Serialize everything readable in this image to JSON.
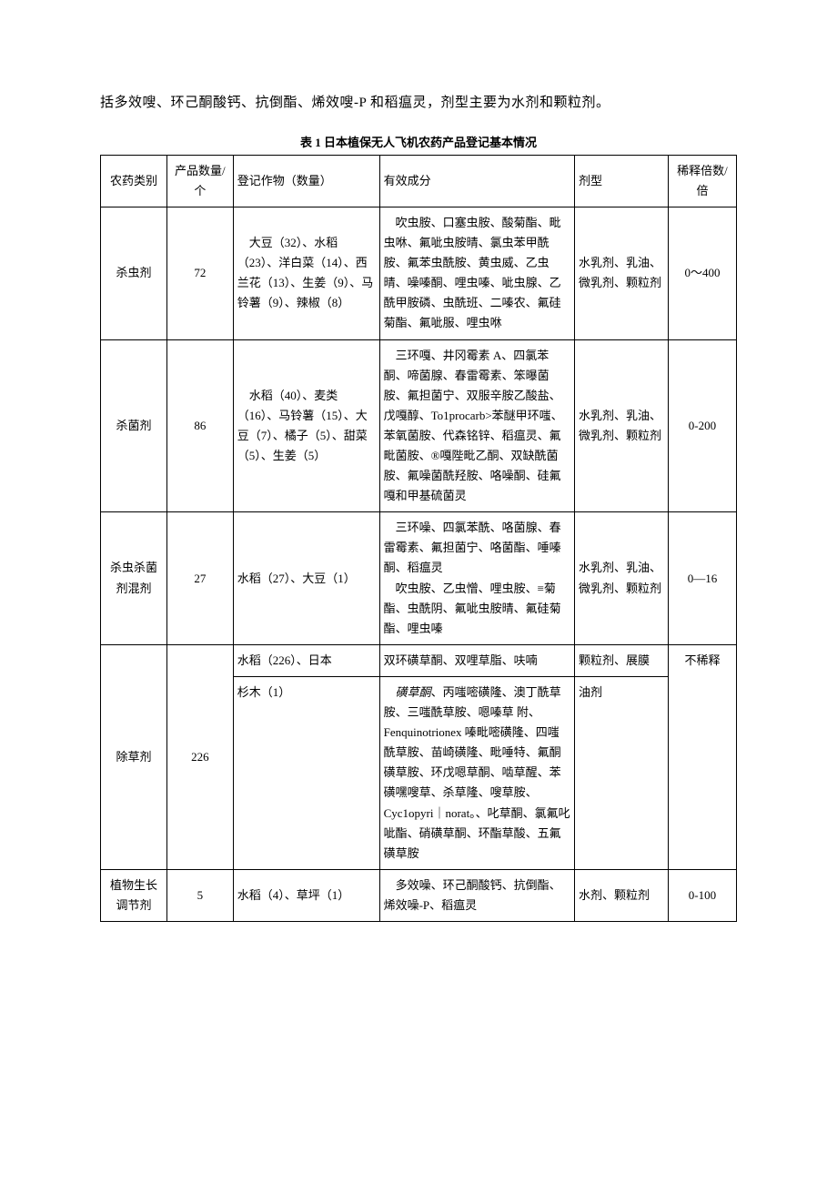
{
  "intro": "括多效嗖、环己酮酸钙、抗倒酯、烯效嗖-P 和稻瘟灵，剂型主要为水剂和颗粒剂。",
  "caption": "表 1 日本植保无人飞机农药产品登记基本情况",
  "headers": {
    "category": "农药类别",
    "count": "产品数量/个",
    "crops": "登记作物（数量）",
    "ingredients": "有效成分",
    "form": "剂型",
    "dilution": "稀释倍数/倍"
  },
  "rows": [
    {
      "category": "杀虫剂",
      "count": "72",
      "crops": "　大豆（32）、水稻（23）、洋白菜（14）、西兰花（13）、生姜（9）、马铃薯（9）、辣椒（8）",
      "ingredients": "　吹虫胺、口塞虫胺、酸菊酯、毗虫咻、氟呲虫胺晴、氯虫苯甲酰胺、氟苯虫酰胺、黄虫威、乙虫晴、噪嗪酮、哩虫嗪、呲虫腺、乙酰甲胺磷、虫酰班、二嗪农、氟硅菊酯、氟呲服、哩虫咻",
      "form": "水乳剂、乳油、微乳剂、颗粒剂",
      "dilution": "0～400"
    },
    {
      "category": "杀菌剂",
      "count": "86",
      "crops": "　水稻（40）、麦类（16）、马铃薯（15）、大豆（7）、橘子（5）、甜菜（5）、生姜（5）",
      "ingredients": "　三环嘎、井冈霉素 A、四氯苯酮、啼菌腺、春雷霉素、笨曝菌胺、氟担菌宁、双服辛胺乙酸盐、戊嘎醇、To1procarb>苯醚甲环嗤、苯氧菌胺、代森铭锌、稻瘟灵、氟毗菌胺、®嘎陛毗乙酮、双缺酰菌胺、氟噪菌酰羟胺、咯噪酮、硅氟嘎和甲基硫菌灵",
      "form": "水乳剂、乳油、微乳剂、颗粒剂",
      "dilution": "0-200"
    },
    {
      "category": "杀虫杀菌剂混剂",
      "count": "27",
      "crops": "水稻（27）、大豆（1）",
      "ingredients": "　三环噪、四氯苯酰、咯菌腺、春雷霉素、氟担菌宁、咯菌酯、唾嗪酮、稻瘟灵\n　吹虫胺、乙虫憎、哩虫胺、≡菊酯、虫酰阴、氟呲虫胺晴、氟硅菊酯、哩虫嗪",
      "form": "水乳剂、乳油、微乳剂、颗粒剂",
      "dilution": "0—16"
    },
    {
      "category": "除草剂",
      "count": "226",
      "crops_a": "水稻（226）、日本",
      "ingredients_a": "双环磺草酮、双哩草脂、呋喃",
      "form_a": "颗粒剂、展膜",
      "dilution": "不稀释",
      "crops_b": "杉木（1）",
      "ingredients_b_pre": "　",
      "ingredients_b_italic": "磺草酮",
      "ingredients_b_post": "、丙嗤嘧磺隆、澳丁酰草胺、三嗤酰草胺、嗯嗪草 附、Fenquinotrionex 嗪毗嘧磺隆、四嗤酰草胺、苗崎磺隆、毗唾特、氟酮磺草胺、环戊嗯草酮、啮草醒、苯磺嘿嗖草、杀草隆、嗖草胺、Cyc1opyri｜norat。、叱草酮、氯氟叱呲酯、硝磺草酮、环酯草酸、五氟磺草胺",
      "form_b": "油剂"
    },
    {
      "category": "植物生长调节剂",
      "count": "5",
      "crops": "水稻（4）、草坪（1）",
      "ingredients": "　多效噪、环己酮酸钙、抗倒酯、烯效噪-P、稻瘟灵",
      "form": "水剂、颗粒剂",
      "dilution": "0-100"
    }
  ]
}
